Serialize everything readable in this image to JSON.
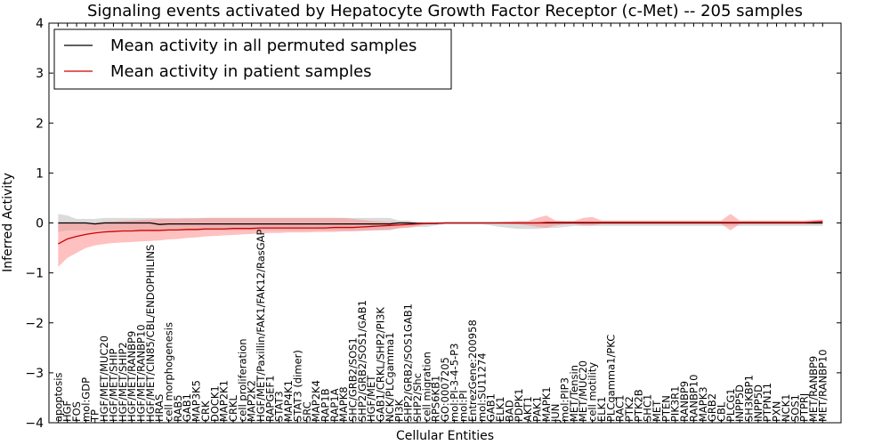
{
  "chart_data": {
    "type": "line",
    "title": "Signaling events activated by Hepatocyte Growth Factor Receptor (c-Met) -- 205 samples",
    "xlabel": "Cellular Entities",
    "ylabel": "Inferred Activity",
    "ylim": [
      -4,
      4
    ],
    "yticks": [
      "−4",
      "−3",
      "−2",
      "−1",
      "0",
      "1",
      "2",
      "3",
      "4"
    ],
    "ytick_values": [
      -4,
      -3,
      -2,
      -1,
      0,
      1,
      2,
      3,
      4
    ],
    "legend_position": "top-left",
    "categories": [
      "apoptosis",
      "HGF",
      "FOS",
      "mol:GDP",
      "TP",
      "HGF/MET/MUC20",
      "HGF/MET/SHIP",
      "HGF/MET/SHIP2",
      "HGF/MET/RANBP9",
      "HGF/MET/RANBP10",
      "HGF/MET/CIN85/CBL/ENDOPHILINS",
      "HRAS",
      "cell morphogenesis",
      "RAB5",
      "GAB1",
      "MAP3K5",
      "CRK",
      "DOCK1",
      "MAP2K1",
      "CRKL",
      "cell proliferation",
      "MAP2K2",
      "HGF/MET/Paxillin/FAK1/FAK12/RasGAP",
      "RAPGEF1",
      "STAT3",
      "MAP4K1",
      "STAT3 (dimer)",
      "SRC",
      "MAP2K4",
      "RAP1B",
      "RAP1A",
      "MAPK8",
      "SHC/GRB2/SOS1",
      "SHP2/GRB2/SOS1/GAB1",
      "HGF/MET",
      "GAB1/CRKL/SHP2/PI3K",
      "NCK/PLCgamma1",
      "PI3K",
      "SHP2/GRB2/SOS1GAB1",
      "SHP2/Shc",
      "cell migration",
      "RPS6KB1",
      "GO:0007205",
      "mol:PI-3-4-5-P3",
      "mol:PI",
      "EntrezGene:200958",
      "mol:SU11274",
      "GAB1",
      "ELK1",
      "BAD",
      "PDPK1",
      "AKT1",
      "PAK1",
      "MAPK1",
      "JUN",
      "mol:PIP3",
      "MET/Tensin",
      "MET/MUC20",
      "cell motility",
      "ELK1",
      "PLCgamma1/PKC",
      "RAC1",
      "PTK2",
      "PTK2B",
      "SHC1",
      "MET",
      "PTEN",
      "PIK3R1",
      "RANBP9",
      "RANBP10",
      "MAPK3",
      "GRB2",
      "CBL",
      "PLCG1",
      "INPP5D",
      "SH3KBP1",
      "INPP5D",
      "PTPN11",
      "PXN",
      "NCK1",
      "SOS1",
      "PTPRJ",
      "MET/RANBP9",
      "MET/RANBP10"
    ],
    "x_range": [
      -1,
      85
    ],
    "series": [
      {
        "name": "Mean activity in all permuted samples",
        "color": "#000000",
        "band_color": "#b0b0b0",
        "values": [
          0,
          0,
          0,
          0,
          -0.02,
          0,
          0,
          0,
          0,
          0,
          0,
          -0.03,
          -0.02,
          -0.02,
          -0.02,
          -0.02,
          -0.02,
          -0.02,
          -0.02,
          -0.02,
          -0.02,
          -0.02,
          -0.02,
          -0.02,
          -0.02,
          -0.02,
          -0.02,
          -0.02,
          -0.02,
          -0.02,
          -0.02,
          -0.02,
          -0.02,
          -0.02,
          -0.02,
          -0.02,
          -0.02,
          0,
          0,
          -0.01,
          -0.01,
          -0.01,
          0,
          0,
          0,
          0,
          0,
          0,
          0,
          0,
          0,
          0,
          0,
          0,
          0,
          0,
          0,
          0,
          0,
          0,
          0,
          0,
          0,
          0,
          0,
          0,
          0,
          0,
          0,
          0,
          0,
          0,
          0,
          0,
          0,
          0,
          0,
          0,
          0,
          0,
          0,
          0,
          0,
          0
        ],
        "lower": [
          -0.18,
          -0.15,
          -0.15,
          -0.15,
          -0.15,
          -0.14,
          -0.14,
          -0.14,
          -0.14,
          -0.14,
          -0.14,
          -0.15,
          -0.15,
          -0.15,
          -0.15,
          -0.15,
          -0.15,
          -0.15,
          -0.15,
          -0.15,
          -0.15,
          -0.15,
          -0.15,
          -0.15,
          -0.15,
          -0.15,
          -0.15,
          -0.15,
          -0.15,
          -0.15,
          -0.15,
          -0.15,
          -0.15,
          -0.15,
          -0.15,
          -0.15,
          -0.15,
          -0.1,
          -0.1,
          -0.08,
          -0.08,
          -0.05,
          -0.03,
          -0.03,
          -0.03,
          -0.03,
          -0.03,
          -0.05,
          -0.08,
          -0.1,
          -0.12,
          -0.12,
          -0.12,
          -0.1,
          -0.1,
          -0.08,
          -0.06,
          -0.06,
          -0.06,
          -0.06,
          -0.06,
          -0.06,
          -0.06,
          -0.06,
          -0.06,
          -0.06,
          -0.06,
          -0.06,
          -0.06,
          -0.06,
          -0.06,
          -0.06,
          -0.06,
          -0.06,
          -0.06,
          -0.06,
          -0.06,
          -0.06,
          -0.06,
          -0.06,
          -0.06,
          -0.06,
          -0.06,
          -0.06
        ],
        "upper": [
          0.18,
          0.15,
          0.08,
          0.08,
          0.08,
          0.1,
          0.1,
          0.1,
          0.1,
          0.1,
          0.1,
          0.1,
          0.1,
          0.1,
          0.1,
          0.1,
          0.1,
          0.1,
          0.1,
          0.1,
          0.1,
          0.1,
          0.1,
          0.1,
          0.1,
          0.1,
          0.1,
          0.1,
          0.1,
          0.1,
          0.1,
          0.1,
          0.1,
          0.1,
          0.1,
          0.1,
          0.1,
          0.05,
          0.05,
          0.02,
          0.02,
          0.02,
          0.02,
          0.02,
          0.02,
          0.02,
          0.02,
          0.02,
          0.02,
          0.02,
          0.02,
          0.02,
          0.02,
          0.02,
          0.02,
          0.02,
          0.02,
          0.02,
          0.02,
          0.02,
          0.02,
          0.02,
          0.02,
          0.02,
          0.02,
          0.02,
          0.02,
          0.02,
          0.02,
          0.02,
          0.02,
          0.02,
          0.02,
          0.02,
          0.02,
          0.02,
          0.02,
          0.02,
          0.02,
          0.02,
          0.02,
          0.02,
          0.02,
          0.02
        ]
      },
      {
        "name": "Mean activity in patient samples",
        "color": "#cc0000",
        "band_color": "#ff8c8c",
        "values": [
          -0.42,
          -0.32,
          -0.27,
          -0.23,
          -0.2,
          -0.18,
          -0.17,
          -0.16,
          -0.16,
          -0.15,
          -0.15,
          -0.15,
          -0.14,
          -0.14,
          -0.13,
          -0.13,
          -0.12,
          -0.12,
          -0.12,
          -0.11,
          -0.11,
          -0.11,
          -0.1,
          -0.1,
          -0.1,
          -0.1,
          -0.1,
          -0.1,
          -0.1,
          -0.1,
          -0.09,
          -0.09,
          -0.09,
          -0.08,
          -0.07,
          -0.06,
          -0.05,
          -0.04,
          -0.03,
          -0.02,
          -0.01,
          -0.01,
          0,
          0,
          0,
          0,
          0,
          0,
          0,
          0,
          0,
          0,
          0,
          0.01,
          0.01,
          0.01,
          0.01,
          0.01,
          0.01,
          0.01,
          0.01,
          0.01,
          0.01,
          0.01,
          0.01,
          0.01,
          0.01,
          0.01,
          0.01,
          0.01,
          0.01,
          0.01,
          0.01,
          0.01,
          0.01,
          0.01,
          0.01,
          0.01,
          0.01,
          0.01,
          0.01,
          0.01,
          0.02,
          0.03
        ],
        "lower": [
          -0.88,
          -0.7,
          -0.6,
          -0.5,
          -0.45,
          -0.42,
          -0.4,
          -0.39,
          -0.38,
          -0.37,
          -0.36,
          -0.35,
          -0.33,
          -0.32,
          -0.3,
          -0.29,
          -0.27,
          -0.26,
          -0.25,
          -0.24,
          -0.23,
          -0.22,
          -0.21,
          -0.2,
          -0.2,
          -0.19,
          -0.19,
          -0.19,
          -0.18,
          -0.18,
          -0.18,
          -0.17,
          -0.17,
          -0.16,
          -0.15,
          -0.14,
          -0.13,
          -0.11,
          -0.09,
          -0.06,
          -0.03,
          -0.02,
          -0.01,
          -0.01,
          -0.01,
          -0.01,
          -0.01,
          -0.01,
          -0.01,
          -0.02,
          -0.03,
          -0.05,
          -0.08,
          -0.1,
          -0.05,
          -0.03,
          -0.02,
          -0.05,
          -0.05,
          -0.02,
          -0.02,
          -0.02,
          -0.02,
          -0.02,
          -0.02,
          -0.02,
          -0.02,
          -0.02,
          -0.02,
          -0.02,
          -0.02,
          -0.02,
          -0.02,
          -0.15,
          -0.02,
          -0.02,
          -0.02,
          -0.02,
          -0.02,
          -0.02,
          -0.02,
          -0.02,
          -0.02,
          -0.02
        ],
        "upper": [
          0,
          0,
          0,
          0,
          0,
          0.02,
          0.03,
          0.04,
          0.05,
          0.06,
          0.07,
          0.08,
          0.08,
          0.08,
          0.09,
          0.09,
          0.1,
          0.1,
          0.1,
          0.1,
          0.1,
          0.1,
          0.1,
          0.1,
          0.1,
          0.1,
          0.1,
          0.1,
          0.1,
          0.1,
          0.1,
          0.1,
          0.08,
          0.06,
          0.04,
          0.03,
          0.02,
          0.02,
          0.01,
          0.01,
          0.01,
          0.01,
          0.01,
          0.01,
          0.01,
          0.01,
          0.01,
          0.01,
          0.02,
          0.03,
          0.04,
          0.04,
          0.1,
          0.15,
          0.05,
          0.04,
          0.04,
          0.1,
          0.12,
          0.05,
          0.05,
          0.05,
          0.05,
          0.05,
          0.05,
          0.05,
          0.05,
          0.05,
          0.05,
          0.05,
          0.05,
          0.05,
          0.05,
          0.18,
          0.05,
          0.05,
          0.05,
          0.05,
          0.05,
          0.05,
          0.05,
          0.05,
          0.06,
          0.07
        ]
      }
    ]
  }
}
